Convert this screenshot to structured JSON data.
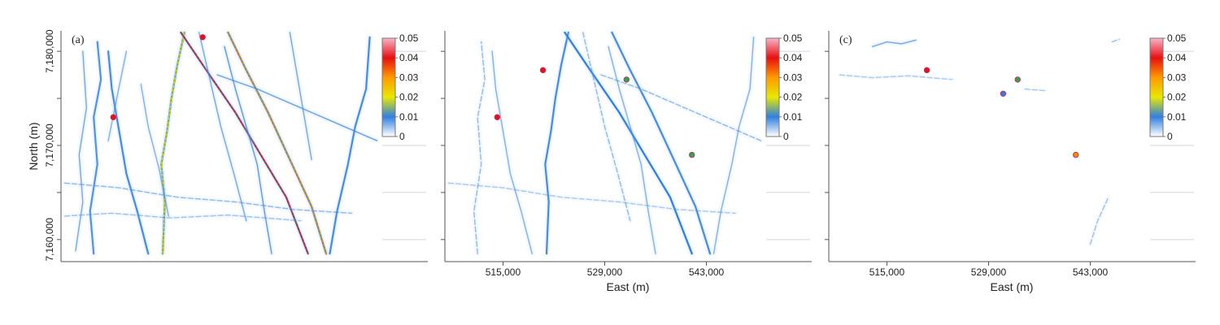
{
  "colors": {
    "low": "#f4f8ff",
    "blue": "#2f7fe0",
    "green": "#2aa84a",
    "yellow": "#f0e000",
    "orange": "#ff8a00",
    "red": "#e81010",
    "high": "#f8c8d4",
    "axis": "#555555"
  },
  "chart_data": [
    {
      "type": "heatmap",
      "panel_label": "(a)",
      "xlabel": "",
      "ylabel": "North (m)",
      "xlim": [
        507000,
        551000
      ],
      "ylim": [
        7158000,
        7182000
      ],
      "xticks": [],
      "yticks": [
        7160000,
        7170000,
        7180000
      ],
      "ytick_labels": [
        "7,160,000",
        "7,170,000",
        "7,180,000"
      ],
      "colorbar": {
        "ticks": [
          0,
          0.01,
          0.02,
          0.03,
          0.04,
          0.05
        ],
        "labels": [
          "0",
          "0.01",
          "0.02",
          "0.03",
          "0.04",
          "0.05"
        ],
        "range": [
          0,
          0.05
        ]
      },
      "features": [
        {
          "points": [
            [
              521000,
              7158500
            ],
            [
              521300,
              7164000
            ],
            [
              520800,
              7168000
            ],
            [
              521600,
              7171500
            ],
            [
              522200,
              7175000
            ],
            [
              523000,
              7178500
            ],
            [
              524000,
              7182000
            ]
          ],
          "value": 0.025
        },
        {
          "points": [
            [
              523500,
              7182000
            ],
            [
              527000,
              7178000
            ],
            [
              531000,
              7173500
            ],
            [
              534500,
              7169000
            ],
            [
              538000,
              7164500
            ],
            [
              541000,
              7158500
            ]
          ],
          "value": 0.045
        },
        {
          "points": [
            [
              530000,
              7182000
            ],
            [
              532500,
              7178000
            ],
            [
              535500,
              7173500
            ],
            [
              538500,
              7168500
            ],
            [
              541500,
              7163500
            ],
            [
              543500,
              7158500
            ]
          ],
          "value": 0.035
        },
        {
          "points": [
            [
              519000,
              7158500
            ],
            [
              517500,
              7163000
            ],
            [
              516000,
              7167000
            ],
            [
              515000,
              7171500
            ],
            [
              514000,
              7176000
            ],
            [
              513500,
              7180000
            ]
          ],
          "value": 0.01
        },
        {
          "points": [
            [
              511500,
              7158500
            ],
            [
              511000,
              7163000
            ],
            [
              512000,
              7168000
            ],
            [
              511500,
              7173000
            ],
            [
              512500,
              7177000
            ],
            [
              512000,
              7181000
            ]
          ],
          "value": 0.009
        },
        {
          "points": [
            [
              509000,
              7158800
            ],
            [
              510000,
              7164000
            ],
            [
              509500,
              7169000
            ],
            [
              510500,
              7174000
            ],
            [
              510000,
              7180000
            ]
          ],
          "value": 0.006
        },
        {
          "points": [
            [
              544000,
              7158500
            ],
            [
              545000,
              7163000
            ],
            [
              546500,
              7168000
            ],
            [
              547500,
              7172000
            ],
            [
              549000,
              7176000
            ],
            [
              549500,
              7181500
            ]
          ],
          "value": 0.01
        },
        {
          "points": [
            [
              536000,
              7158500
            ],
            [
              535000,
              7163000
            ],
            [
              534000,
              7168000
            ],
            [
              532500,
              7172000
            ],
            [
              531000,
              7176000
            ],
            [
              529500,
              7180500
            ]
          ],
          "value": 0.008
        },
        {
          "points": [
            [
              528500,
              7177500
            ],
            [
              534000,
              7176000
            ],
            [
              540000,
              7174000
            ],
            [
              546000,
              7172000
            ],
            [
              550500,
              7170500
            ]
          ],
          "value": 0.007
        },
        {
          "points": [
            [
              507500,
              7166000
            ],
            [
              515000,
              7165500
            ],
            [
              523000,
              7164500
            ],
            [
              531000,
              7164000
            ],
            [
              539000,
              7163200
            ],
            [
              547000,
              7162800
            ]
          ],
          "value": 0.004
        },
        {
          "points": [
            [
              507500,
              7162500
            ],
            [
              514000,
              7162800
            ],
            [
              522000,
              7162300
            ],
            [
              530000,
              7162600
            ],
            [
              540000,
              7162000
            ]
          ],
          "value": 0.003
        },
        {
          "points": [
            [
              518000,
              7176500
            ],
            [
              519000,
              7172000
            ],
            [
              520500,
              7167500
            ],
            [
              521800,
              7162500
            ]
          ],
          "value": 0.005
        },
        {
          "points": [
            [
              526000,
              7182000
            ],
            [
              527500,
              7177000
            ],
            [
              529000,
              7172000
            ],
            [
              530800,
              7167000
            ],
            [
              532500,
              7162000
            ]
          ],
          "value": 0.006
        },
        {
          "points": [
            [
              538500,
              7182000
            ],
            [
              539500,
              7177500
            ],
            [
              540500,
              7173000
            ],
            [
              541500,
              7168500
            ]
          ],
          "value": 0.006
        },
        {
          "points": [
            [
              513500,
              7170500
            ],
            [
              514800,
              7175500
            ],
            [
              516000,
              7180000
            ]
          ],
          "value": 0.005
        }
      ],
      "hotspots": [
        {
          "x": 514200,
          "y": 7173000,
          "value": 0.05
        },
        {
          "x": 526500,
          "y": 7181500,
          "value": 0.048
        }
      ]
    },
    {
      "type": "heatmap",
      "panel_label": "",
      "xlabel": "East (m)",
      "ylabel": "",
      "xlim": [
        507000,
        551000
      ],
      "ylim": [
        7158000,
        7182000
      ],
      "xticks": [
        515000,
        529000,
        543000
      ],
      "xtick_labels": [
        "515,000",
        "529,000",
        "543,000"
      ],
      "yticks": [],
      "colorbar": {
        "ticks": [
          0,
          0.01,
          0.02,
          0.03,
          0.04,
          0.05
        ],
        "labels": [
          "0",
          "0.01",
          "0.02",
          "0.03",
          "0.04",
          "0.05"
        ],
        "range": [
          0,
          0.05
        ]
      },
      "features": [
        {
          "points": [
            [
              521000,
              7158500
            ],
            [
              521300,
              7164000
            ],
            [
              520800,
              7168000
            ],
            [
              521600,
              7171500
            ],
            [
              522200,
              7175000
            ],
            [
              523000,
              7178500
            ],
            [
              524000,
              7182000
            ]
          ],
          "value": 0.01
        },
        {
          "points": [
            [
              523500,
              7182000
            ],
            [
              527000,
              7178000
            ],
            [
              531000,
              7173500
            ],
            [
              534500,
              7169000
            ],
            [
              538000,
              7164500
            ],
            [
              541000,
              7158500
            ]
          ],
          "value": 0.012
        },
        {
          "points": [
            [
              530000,
              7182000
            ],
            [
              532500,
              7178000
            ],
            [
              535500,
              7173500
            ],
            [
              538500,
              7168500
            ],
            [
              541500,
              7163500
            ],
            [
              543500,
              7158500
            ]
          ],
          "value": 0.01
        },
        {
          "points": [
            [
              519000,
              7158500
            ],
            [
              517500,
              7163000
            ],
            [
              516000,
              7167000
            ],
            [
              515000,
              7171500
            ],
            [
              514000,
              7176000
            ],
            [
              513500,
              7180000
            ]
          ],
          "value": 0.005
        },
        {
          "points": [
            [
              511500,
              7158500
            ],
            [
              511000,
              7163000
            ],
            [
              512000,
              7168000
            ],
            [
              511500,
              7173000
            ],
            [
              512500,
              7177000
            ],
            [
              512000,
              7181000
            ]
          ],
          "value": 0.004
        },
        {
          "points": [
            [
              544000,
              7158500
            ],
            [
              545000,
              7163000
            ],
            [
              546500,
              7168000
            ],
            [
              547500,
              7172000
            ],
            [
              549000,
              7176000
            ],
            [
              549500,
              7181500
            ]
          ],
          "value": 0.005
        },
        {
          "points": [
            [
              536000,
              7158500
            ],
            [
              535000,
              7163000
            ],
            [
              534000,
              7168000
            ],
            [
              532500,
              7172000
            ],
            [
              531000,
              7176000
            ],
            [
              529500,
              7180500
            ]
          ],
          "value": 0.005
        },
        {
          "points": [
            [
              528500,
              7177500
            ],
            [
              534000,
              7176000
            ],
            [
              540000,
              7174000
            ],
            [
              546000,
              7172000
            ],
            [
              550500,
              7170500
            ]
          ],
          "value": 0.004
        },
        {
          "points": [
            [
              507500,
              7166000
            ],
            [
              515000,
              7165500
            ],
            [
              523000,
              7164500
            ],
            [
              531000,
              7164000
            ],
            [
              539000,
              7163200
            ],
            [
              547000,
              7162800
            ]
          ],
          "value": 0.002
        },
        {
          "points": [
            [
              526000,
              7182000
            ],
            [
              527500,
              7177000
            ],
            [
              529000,
              7172000
            ],
            [
              530800,
              7167000
            ],
            [
              532500,
              7162000
            ]
          ],
          "value": 0.004
        }
      ],
      "hotspots": [
        {
          "x": 514200,
          "y": 7173000,
          "value": 0.045
        },
        {
          "x": 520500,
          "y": 7178000,
          "value": 0.045
        },
        {
          "x": 532000,
          "y": 7177000,
          "value": 0.015
        },
        {
          "x": 541000,
          "y": 7169000,
          "value": 0.015
        }
      ]
    },
    {
      "type": "heatmap",
      "panel_label": "(c)",
      "xlabel": "East (m)",
      "ylabel": "",
      "xlim": [
        507000,
        551000
      ],
      "ylim": [
        7158000,
        7182000
      ],
      "xticks": [
        515000,
        529000,
        543000
      ],
      "xtick_labels": [
        "515,000",
        "529,000",
        "543,000"
      ],
      "yticks": [],
      "colorbar": {
        "ticks": [
          0,
          0.01,
          0.02,
          0.03,
          0.04,
          0.05
        ],
        "labels": [
          "0",
          "0.01",
          "0.02",
          "0.03",
          "0.04",
          "0.05"
        ],
        "range": [
          0,
          0.05
        ]
      },
      "features": [
        {
          "points": [
            [
              513000,
              7180500
            ],
            [
              515000,
              7181000
            ],
            [
              517000,
              7180800
            ],
            [
              519000,
              7181200
            ]
          ],
          "value": 0.006
        },
        {
          "points": [
            [
              508500,
              7177500
            ],
            [
              513000,
              7177200
            ],
            [
              518000,
              7177400
            ],
            [
              524000,
              7177000
            ]
          ],
          "value": 0.002
        },
        {
          "points": [
            [
              534000,
              7176000
            ],
            [
              537000,
              7175800
            ]
          ],
          "value": 0.002
        },
        {
          "points": [
            [
              543000,
              7159500
            ],
            [
              544000,
              7162000
            ],
            [
              545500,
              7164500
            ]
          ],
          "value": 0.003
        },
        {
          "points": [
            [
              546000,
              7181000
            ],
            [
              547000,
              7181300
            ]
          ],
          "value": 0.003
        }
      ],
      "hotspots": [
        {
          "x": 520500,
          "y": 7178000,
          "value": 0.045
        },
        {
          "x": 533000,
          "y": 7177000,
          "value": 0.015
        },
        {
          "x": 531000,
          "y": 7175500,
          "value": 0.01
        },
        {
          "x": 541000,
          "y": 7169000,
          "value": 0.04
        }
      ]
    }
  ]
}
